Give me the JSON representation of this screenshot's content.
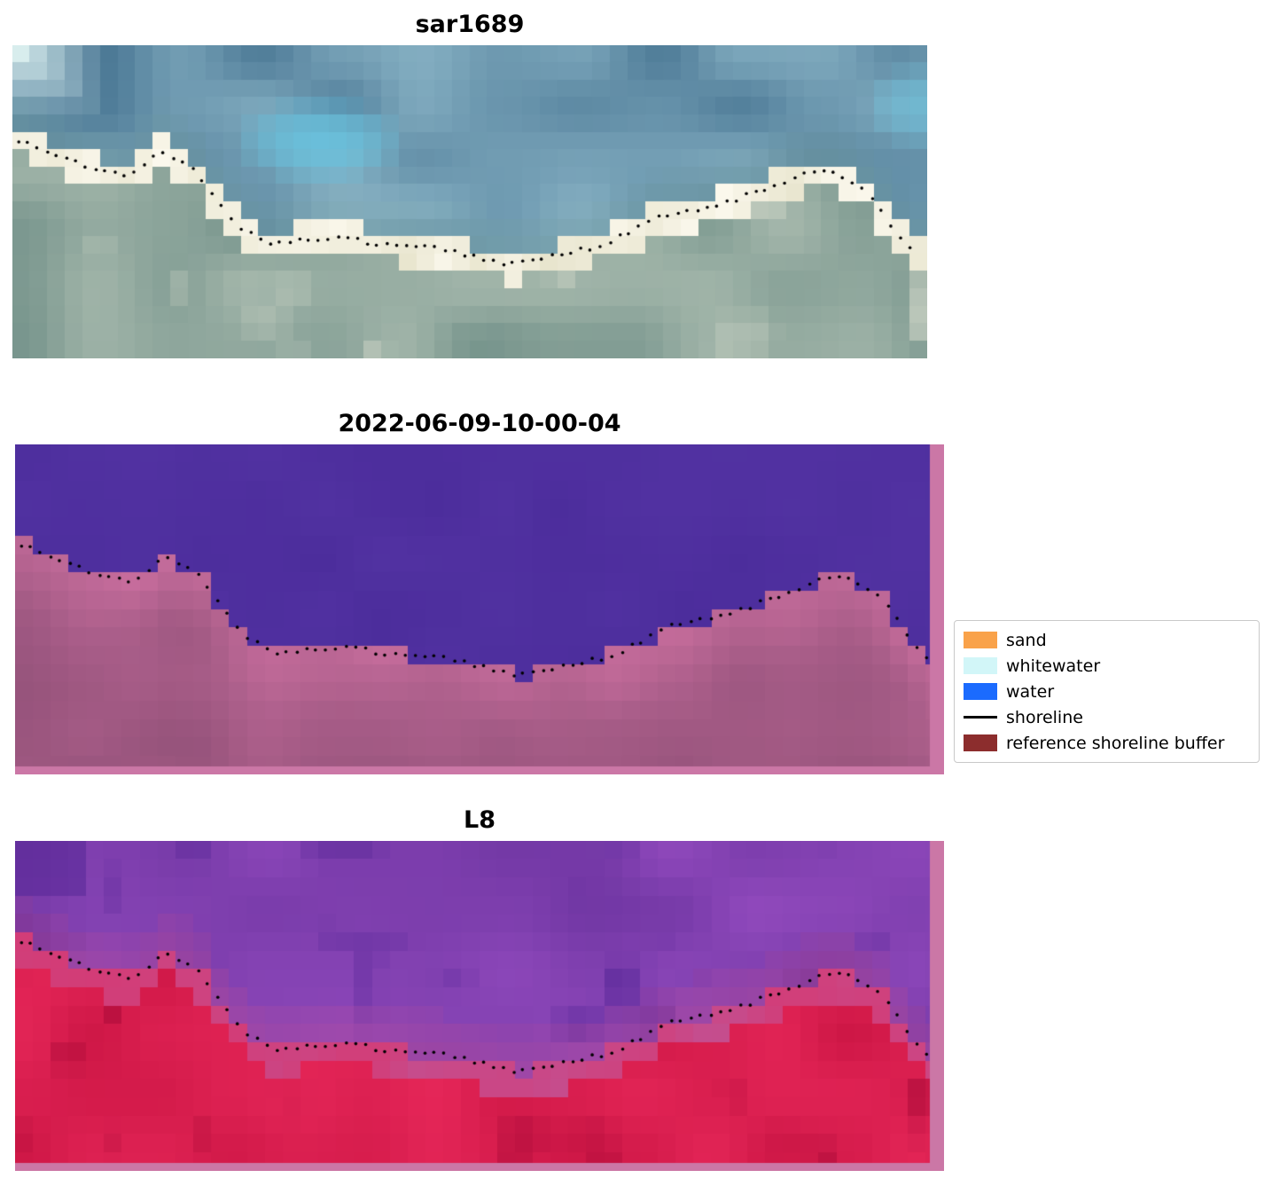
{
  "panels": [
    {
      "title": "sar1689",
      "content": "RGB satellite image crop with detected shoreline (black dotted line)"
    },
    {
      "title": "2022-06-09-10-00-04",
      "content": "image classification: water (purple) and reference shoreline buffer (pink) with detected shoreline"
    },
    {
      "title": "L8",
      "content": "false-colour composite with detected shoreline"
    }
  ],
  "legend": {
    "items": [
      {
        "label": "sand",
        "type": "patch",
        "color": "#f9a24a"
      },
      {
        "label": "whitewater",
        "type": "patch",
        "color": "#d2f6f8"
      },
      {
        "label": "water",
        "type": "patch",
        "color": "#1b6bfe"
      },
      {
        "label": "shoreline",
        "type": "line",
        "color": "#000000"
      },
      {
        "label": "reference shoreline buffer",
        "type": "patch",
        "color": "#8c2d2d"
      }
    ]
  },
  "chart_data": {
    "type": "heatmap",
    "title": "shoreline detection figure (3 stacked image panels)",
    "panel_titles": [
      "sar1689",
      "2022-06-09-10-00-04",
      "L8"
    ],
    "legend_entries": [
      "sand",
      "whitewater",
      "water",
      "shoreline",
      "reference shoreline buffer"
    ],
    "legend_position": "center right",
    "grid": false,
    "series": [
      {
        "name": "shoreline",
        "units": "normalized panel coordinates (x right, y down)",
        "points_normalized": [
          [
            0.005,
            0.3
          ],
          [
            0.03,
            0.33
          ],
          [
            0.06,
            0.365
          ],
          [
            0.09,
            0.4
          ],
          [
            0.125,
            0.415
          ],
          [
            0.15,
            0.37
          ],
          [
            0.163,
            0.34
          ],
          [
            0.178,
            0.36
          ],
          [
            0.2,
            0.405
          ],
          [
            0.222,
            0.49
          ],
          [
            0.25,
            0.585
          ],
          [
            0.28,
            0.63
          ],
          [
            0.315,
            0.622
          ],
          [
            0.355,
            0.612
          ],
          [
            0.395,
            0.632
          ],
          [
            0.43,
            0.638
          ],
          [
            0.465,
            0.65
          ],
          [
            0.5,
            0.672
          ],
          [
            0.54,
            0.698
          ],
          [
            0.575,
            0.688
          ],
          [
            0.61,
            0.66
          ],
          [
            0.64,
            0.642
          ],
          [
            0.672,
            0.602
          ],
          [
            0.705,
            0.553
          ],
          [
            0.745,
            0.528
          ],
          [
            0.788,
            0.495
          ],
          [
            0.825,
            0.458
          ],
          [
            0.862,
            0.415
          ],
          [
            0.88,
            0.398
          ],
          [
            0.9,
            0.405
          ],
          [
            0.92,
            0.44
          ],
          [
            0.94,
            0.49
          ],
          [
            0.958,
            0.565
          ],
          [
            0.972,
            0.625
          ],
          [
            0.985,
            0.655
          ]
        ]
      }
    ]
  },
  "render": {
    "grid": {
      "cols": 52,
      "rows": 18
    },
    "dot": {
      "count": 92,
      "radius": 1.8,
      "x_start": 0.006,
      "x_end": 0.982
    },
    "palettes": {
      "sar": {
        "waterA": [
          74,
          119,
          148
        ],
        "waterB": [
          138,
          180,
          198
        ],
        "waterBright": [
          228,
          247,
          245
        ],
        "cyan": [
          104,
          196,
          224
        ],
        "shallow": [
          112,
          152,
          150
        ],
        "beachA": [
          232,
          229,
          206
        ],
        "beachB": [
          251,
          248,
          237
        ],
        "landA": [
          117,
          147,
          139
        ],
        "landB": [
          164,
          183,
          171
        ],
        "landLight": [
          213,
          218,
          203
        ]
      },
      "cls": {
        "water": [
          76,
          45,
          156
        ],
        "waterVar": [
          90,
          57,
          170
        ],
        "pinkA": [
          201,
          110,
          158
        ],
        "pinkB": [
          166,
          92,
          135
        ],
        "pinkC": [
          144,
          80,
          119
        ],
        "frame": [
          203,
          119,
          166
        ]
      },
      "l8": {
        "purpleA": [
          113,
          55,
          164
        ],
        "purpleB": [
          144,
          73,
          188
        ],
        "purpleDark": [
          84,
          38,
          150
        ],
        "trans": [
          197,
          77,
          142
        ],
        "redA": [
          206,
          23,
          70
        ],
        "redB": [
          229,
          38,
          88
        ],
        "redDark": [
          167,
          9,
          55
        ],
        "frame": [
          203,
          119,
          166
        ]
      }
    }
  }
}
